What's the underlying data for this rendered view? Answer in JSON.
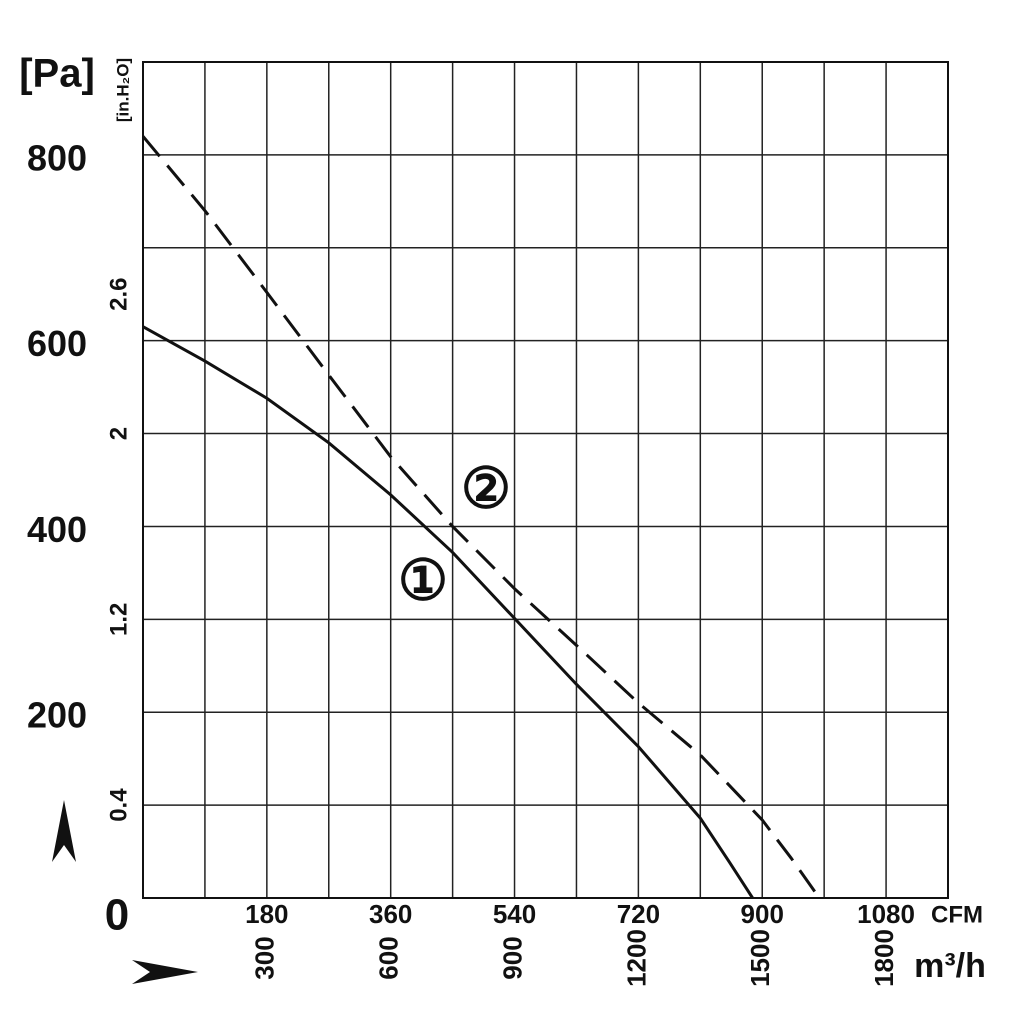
{
  "chart_data": {
    "type": "line",
    "y_unit": "[Pa]",
    "y2_unit": "[in.H₂O]",
    "x_unit": "CFM",
    "x2_unit": "m³/h",
    "xlim": [
      0,
      1170
    ],
    "xticks": [
      180,
      360,
      540,
      720,
      900,
      1080
    ],
    "x2lim": [
      0,
      1950
    ],
    "x2ticks": [
      300,
      600,
      900,
      1200,
      1500,
      1800
    ],
    "ylim": [
      0,
      900
    ],
    "yticks": [
      0,
      200,
      400,
      600,
      800
    ],
    "y2lim": [
      0,
      3.6
    ],
    "y2ticks": [
      0.4,
      1.2,
      2.0,
      2.6
    ],
    "xgrid": [
      90,
      180,
      270,
      360,
      450,
      540,
      630,
      720,
      810,
      900,
      990,
      1080
    ],
    "ygrid": [
      100,
      200,
      300,
      400,
      500,
      600,
      700,
      800
    ],
    "grid": true,
    "series": [
      {
        "name": "①",
        "color": "#111111",
        "dash": false,
        "x": [
          0,
          90,
          180,
          270,
          360,
          450,
          540,
          630,
          720,
          810,
          852,
          886
        ],
        "values": [
          615,
          578,
          538,
          490,
          434,
          372,
          301,
          230,
          163,
          86,
          39,
          0
        ]
      },
      {
        "name": "②",
        "color": "#111111",
        "dash": true,
        "x": [
          0,
          90,
          180,
          270,
          360,
          450,
          540,
          630,
          720,
          810,
          900,
          942,
          983
        ],
        "values": [
          820,
          740,
          652,
          563,
          475,
          400,
          333,
          272,
          210,
          154,
          84,
          43,
          0
        ]
      }
    ]
  }
}
